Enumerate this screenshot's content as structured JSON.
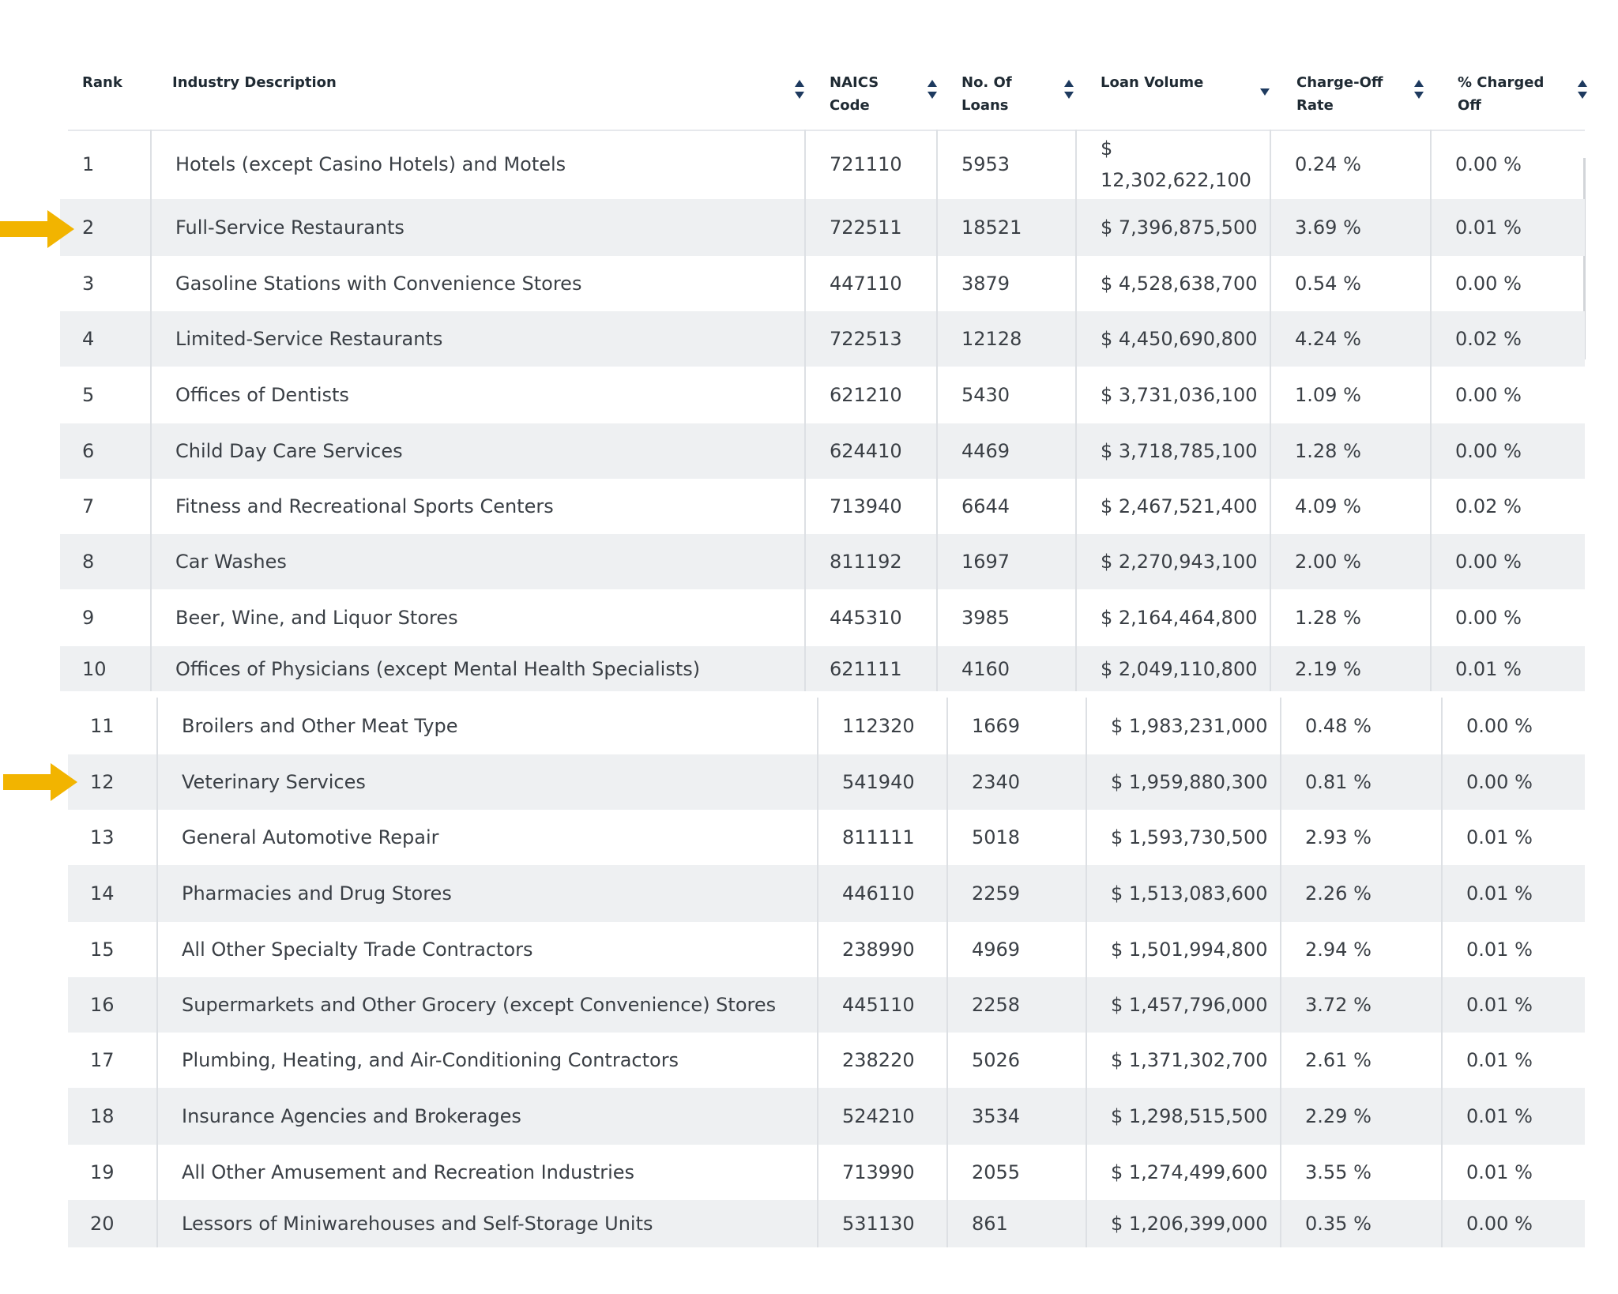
{
  "table": {
    "headers": {
      "rank": "Rank",
      "industry": "Industry Description",
      "naics_line1": "NAICS",
      "naics_line2": "Code",
      "loans_line1": "No. Of",
      "loans_line2": "Loans",
      "volume": "Loan Volume",
      "chargeoff_line1": "Charge-Off",
      "chargeoff_line2": "Rate",
      "pct_line1": "% Charged",
      "pct_line2": "Off"
    },
    "sort_icons": [
      "sort-both-icon",
      "sort-both-icon",
      "sort-both-icon",
      "sort-desc-icon",
      "sort-both-icon",
      "sort-both-icon"
    ],
    "rows_top": [
      {
        "rank": "1",
        "industry": "Hotels (except Casino Hotels) and Motels",
        "naics": "721110",
        "loans": "5953",
        "volume_sym": "$",
        "volume_num": "12,302,622,100",
        "rate": "0.24 %",
        "pct": "0.00 %"
      },
      {
        "rank": "2",
        "industry": "Full-Service Restaurants",
        "naics": "722511",
        "loans": "18521",
        "volume": "$ 7,396,875,500",
        "rate": "3.69 %",
        "pct": "0.01 %"
      },
      {
        "rank": "3",
        "industry": "Gasoline Stations with Convenience Stores",
        "naics": "447110",
        "loans": "3879",
        "volume": "$ 4,528,638,700",
        "rate": "0.54 %",
        "pct": "0.00 %"
      },
      {
        "rank": "4",
        "industry": "Limited-Service Restaurants",
        "naics": "722513",
        "loans": "12128",
        "volume": "$ 4,450,690,800",
        "rate": "4.24 %",
        "pct": "0.02 %"
      },
      {
        "rank": "5",
        "industry": "Offices of Dentists",
        "naics": "621210",
        "loans": "5430",
        "volume": "$ 3,731,036,100",
        "rate": "1.09 %",
        "pct": "0.00 %"
      },
      {
        "rank": "6",
        "industry": "Child Day Care Services",
        "naics": "624410",
        "loans": "4469",
        "volume": "$ 3,718,785,100",
        "rate": "1.28 %",
        "pct": "0.00 %"
      },
      {
        "rank": "7",
        "industry": "Fitness and Recreational Sports Centers",
        "naics": "713940",
        "loans": "6644",
        "volume": "$ 2,467,521,400",
        "rate": "4.09 %",
        "pct": "0.02 %"
      },
      {
        "rank": "8",
        "industry": "Car Washes",
        "naics": "811192",
        "loans": "1697",
        "volume": "$ 2,270,943,100",
        "rate": "2.00 %",
        "pct": "0.00 %"
      },
      {
        "rank": "9",
        "industry": "Beer, Wine, and Liquor Stores",
        "naics": "445310",
        "loans": "3985",
        "volume": "$ 2,164,464,800",
        "rate": "1.28 %",
        "pct": "0.00 %"
      },
      {
        "rank": "10",
        "industry": "Offices of Physicians (except Mental Health Specialists)",
        "naics": "621111",
        "loans": "4160",
        "volume": "$ 2,049,110,800",
        "rate": "2.19 %",
        "pct": "0.01 %"
      }
    ],
    "rows_bottom": [
      {
        "rank": "11",
        "industry": "Broilers and Other Meat Type",
        "naics": "112320",
        "loans": "1669",
        "volume": "$ 1,983,231,000",
        "rate": "0.48 %",
        "pct": "0.00 %"
      },
      {
        "rank": "12",
        "industry": "Veterinary Services",
        "naics": "541940",
        "loans": "2340",
        "volume": "$ 1,959,880,300",
        "rate": "0.81 %",
        "pct": "0.00 %"
      },
      {
        "rank": "13",
        "industry": "General Automotive Repair",
        "naics": "811111",
        "loans": "5018",
        "volume": "$ 1,593,730,500",
        "rate": "2.93 %",
        "pct": "0.01 %"
      },
      {
        "rank": "14",
        "industry": "Pharmacies and Drug Stores",
        "naics": "446110",
        "loans": "2259",
        "volume": "$ 1,513,083,600",
        "rate": "2.26 %",
        "pct": "0.01 %"
      },
      {
        "rank": "15",
        "industry": "All Other Specialty Trade Contractors",
        "naics": "238990",
        "loans": "4969",
        "volume": "$ 1,501,994,800",
        "rate": "2.94 %",
        "pct": "0.01 %"
      },
      {
        "rank": "16",
        "industry": "Supermarkets and Other Grocery (except Convenience) Stores",
        "naics": "445110",
        "loans": "2258",
        "volume": "$ 1,457,796,000",
        "rate": "3.72 %",
        "pct": "0.01 %"
      },
      {
        "rank": "17",
        "industry": "Plumbing, Heating, and Air-Conditioning Contractors",
        "naics": "238220",
        "loans": "5026",
        "volume": "$ 1,371,302,700",
        "rate": "2.61 %",
        "pct": "0.01 %"
      },
      {
        "rank": "18",
        "industry": "Insurance Agencies and Brokerages",
        "naics": "524210",
        "loans": "3534",
        "volume": "$ 1,298,515,500",
        "rate": "2.29 %",
        "pct": "0.01 %"
      },
      {
        "rank": "19",
        "industry": "All Other Amusement and Recreation Industries",
        "naics": "713990",
        "loans": "2055",
        "volume": "$ 1,274,499,600",
        "rate": "3.55 %",
        "pct": "0.01 %"
      },
      {
        "rank": "20",
        "industry": "Lessors of Miniwarehouses and Self-Storage Units",
        "naics": "531130",
        "loans": "861",
        "volume": "$ 1,206,399,000",
        "rate": "0.35 %",
        "pct": "0.00 %"
      }
    ]
  },
  "highlight_arrows": {
    "color": "#f2b400",
    "rows": [
      "2",
      "12"
    ]
  },
  "colors": {
    "header_text": "#1f2a33",
    "body_text": "#3a3f45",
    "stripe": "#eef0f2",
    "sort_icon": "#1e3a5f"
  }
}
